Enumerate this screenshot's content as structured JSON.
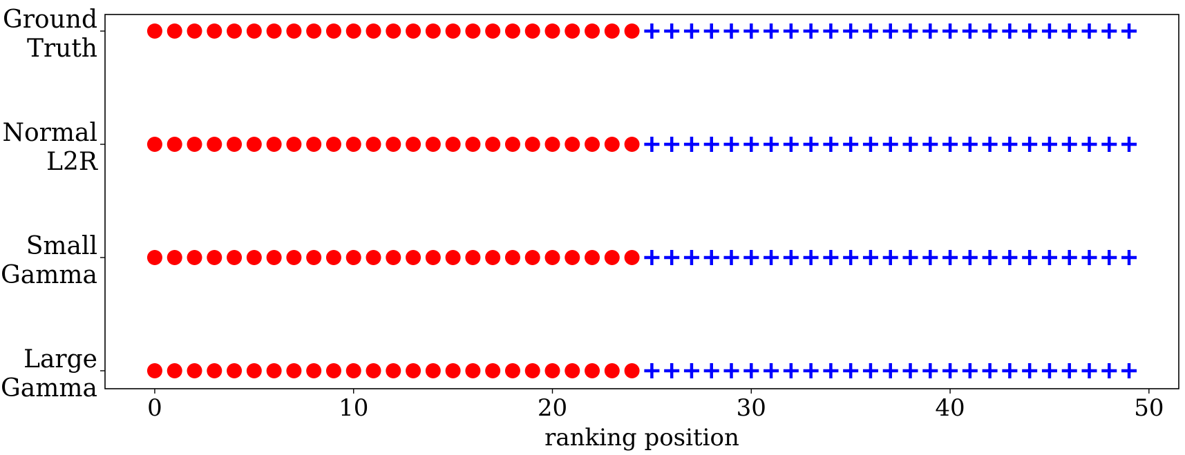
{
  "chart_data": {
    "type": "scatter",
    "title": "",
    "xlabel": "ranking position",
    "ylabel": "",
    "xlim": [
      -2.5,
      51.5
    ],
    "xticks": [
      0,
      10,
      20,
      30,
      40,
      50
    ],
    "grid": false,
    "legend": "none",
    "categories": [
      [
        "Ground",
        "Truth"
      ],
      [
        "Normal",
        "L2R"
      ],
      [
        "Small",
        "Gamma"
      ],
      [
        "Large",
        "Gamma"
      ]
    ],
    "series": [
      {
        "marker": "circle",
        "color": "#ff0000",
        "positions": [
          0,
          1,
          2,
          3,
          4,
          5,
          6,
          7,
          8,
          9,
          10,
          11,
          12,
          13,
          14,
          15,
          16,
          17,
          18,
          19,
          20,
          21,
          22,
          23,
          24
        ]
      },
      {
        "marker": "plus",
        "color": "#0000ff",
        "positions": [
          25,
          26,
          27,
          28,
          29,
          30,
          31,
          32,
          33,
          34,
          35,
          36,
          37,
          38,
          39,
          40,
          41,
          42,
          43,
          44,
          45,
          46,
          47,
          48,
          49
        ]
      }
    ]
  }
}
